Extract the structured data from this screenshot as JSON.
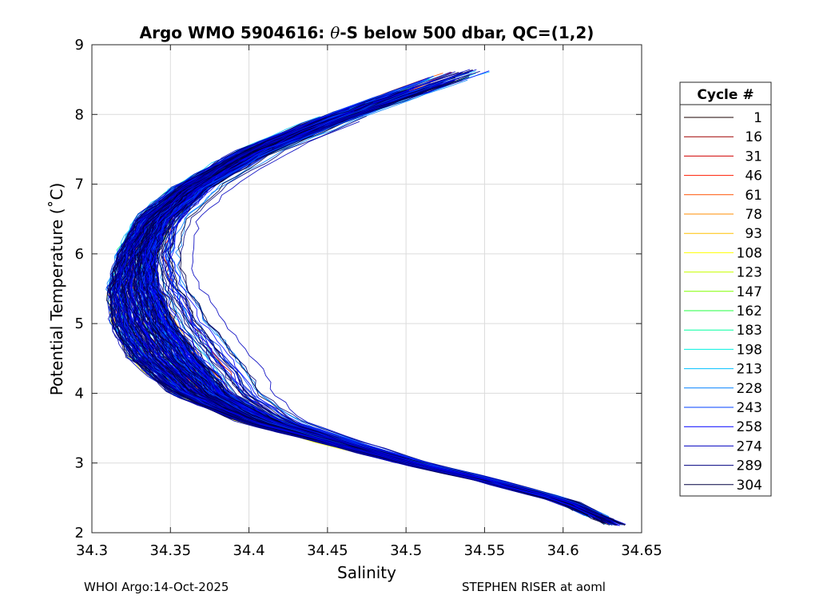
{
  "chart_data": {
    "type": "line",
    "title": {
      "prefix": "Argo WMO 5904616: ",
      "theta": "θ",
      "suffix": "-S below 500 dbar,  QC=(1,2)"
    },
    "xlabel": "Salinity",
    "ylabel": "Potential Temperature (˚C)",
    "xlim": [
      34.3,
      34.65
    ],
    "ylim": [
      2,
      9
    ],
    "x_ticks": [
      "34.3",
      "34.35",
      "34.4",
      "34.45",
      "34.5",
      "34.55",
      "34.6",
      "34.65"
    ],
    "y_ticks": [
      "2",
      "3",
      "4",
      "5",
      "6",
      "7",
      "8",
      "9"
    ],
    "grid": true,
    "legend": {
      "title": "Cycle #",
      "placement": "outside-right",
      "entries": [
        {
          "label": "1",
          "color": "#1a0000"
        },
        {
          "label": "16",
          "color": "#a00000"
        },
        {
          "label": "31",
          "color": "#d00000"
        },
        {
          "label": "46",
          "color": "#ff1a00"
        },
        {
          "label": "61",
          "color": "#ff5000"
        },
        {
          "label": "78",
          "color": "#ff8c00"
        },
        {
          "label": "93",
          "color": "#ffc000"
        },
        {
          "label": "108",
          "color": "#ffff00"
        },
        {
          "label": "123",
          "color": "#c8ff00"
        },
        {
          "label": "147",
          "color": "#80ff00"
        },
        {
          "label": "162",
          "color": "#20ff40"
        },
        {
          "label": "183",
          "color": "#00ffa0"
        },
        {
          "label": "198",
          "color": "#00f0e0"
        },
        {
          "label": "213",
          "color": "#00c0ff"
        },
        {
          "label": "228",
          "color": "#0080ff"
        },
        {
          "label": "243",
          "color": "#0040ff"
        },
        {
          "label": "258",
          "color": "#0000ff"
        },
        {
          "label": "274",
          "color": "#0000c0"
        },
        {
          "label": "289",
          "color": "#000080"
        },
        {
          "label": "304",
          "color": "#000040"
        }
      ]
    },
    "profile_shape": {
      "note": "Approximate theta-S envelope (salinity, potential temperature) shared by all cycles",
      "points": [
        [
          34.545,
          8.65
        ],
        [
          34.5,
          8.3
        ],
        [
          34.45,
          7.9
        ],
        [
          34.4,
          7.45
        ],
        [
          34.36,
          6.95
        ],
        [
          34.335,
          6.5
        ],
        [
          34.323,
          6.0
        ],
        [
          34.318,
          5.5
        ],
        [
          34.322,
          5.0
        ],
        [
          34.335,
          4.5
        ],
        [
          34.36,
          4.0
        ],
        [
          34.4,
          3.6
        ],
        [
          34.45,
          3.3
        ],
        [
          34.5,
          3.0
        ],
        [
          34.55,
          2.75
        ],
        [
          34.6,
          2.45
        ],
        [
          34.635,
          2.1
        ]
      ]
    },
    "profile_count": 300
  },
  "footer": {
    "left": "WHOI Argo:14-Oct-2025",
    "right": "STEPHEN RISER at aoml"
  }
}
